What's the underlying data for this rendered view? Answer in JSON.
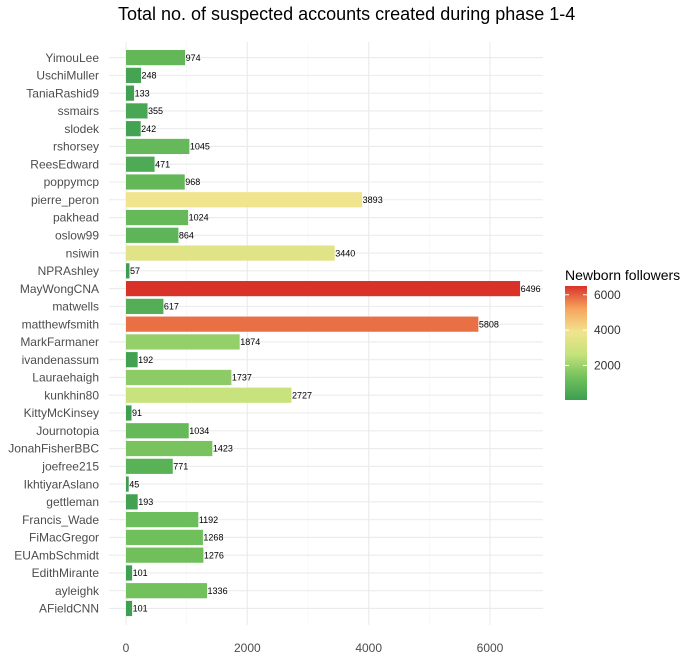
{
  "chart_data": {
    "type": "bar",
    "orientation": "horizontal",
    "title": "Total no. of suspected accounts created during phase 1-4",
    "xlabel": "",
    "ylabel": "",
    "xlim": [
      0,
      6800
    ],
    "x_ticks": [
      0,
      2000,
      4000,
      6000
    ],
    "grid": true,
    "categories": [
      "YimouLee",
      "UschiMuller",
      "TaniaRashid9",
      "ssmairs",
      "slodek",
      "rshorsey",
      "ReesEdward",
      "poppymcp",
      "pierre_peron",
      "pakhead",
      "oslow99",
      "nsiwin",
      "NPRAshley",
      "MayWongCNA",
      "matwells",
      "matthewfsmith",
      "MarkFarmaner",
      "ivandenassum",
      "Lauraehaigh",
      "kunkhin80",
      "KittyMcKinsey",
      "Journotopia",
      "JonahFisherBBC",
      "joefree215",
      "IkhtiyarAslano",
      "gettleman",
      "Francis_Wade",
      "FiMacGregor",
      "EUAmbSchmidt",
      "EdithMirante",
      "ayleighk",
      "AFieldCNN"
    ],
    "values": [
      974,
      248,
      133,
      355,
      242,
      1045,
      471,
      968,
      3893,
      1024,
      864,
      3440,
      57,
      6496,
      617,
      5808,
      1874,
      192,
      1737,
      2727,
      91,
      1034,
      1423,
      771,
      45,
      193,
      1192,
      1268,
      1276,
      101,
      1336,
      101
    ],
    "legend": {
      "title": "Newborn followers",
      "position": "right",
      "ticks": [
        2000,
        4000,
        6000
      ],
      "range": [
        45,
        6496
      ],
      "colors": [
        "#3c9e51",
        "#72c15c",
        "#c5e27c",
        "#f1e48e",
        "#f7a45e",
        "#d83229"
      ]
    }
  }
}
